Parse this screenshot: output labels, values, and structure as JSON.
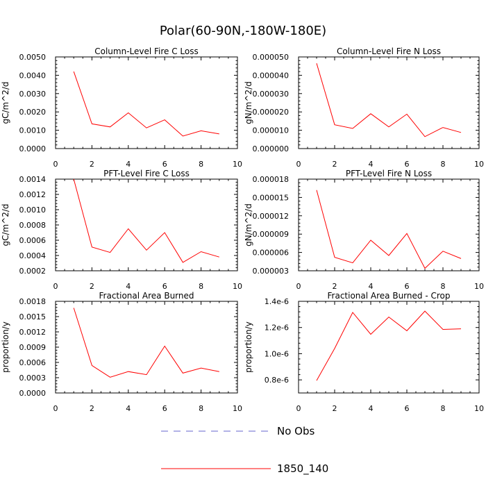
{
  "page": {
    "title": "Polar(60-90N,-180W-180E)",
    "accent_line_color": "#ff0000",
    "obs_line_color": "#6666cc"
  },
  "legend": {
    "entries": [
      {
        "label": "No Obs",
        "style": "dashed",
        "color": "#6666cc"
      },
      {
        "label": "1850_140",
        "style": "solid",
        "color": "#ff0000"
      }
    ]
  },
  "chart_data": [
    {
      "type": "line",
      "title": "Column-Level Fire C Loss",
      "ylabel": "gC/m^2/d",
      "xlabel": "",
      "xlim": [
        0,
        10
      ],
      "xticks": [
        0,
        2,
        4,
        6,
        8,
        10
      ],
      "xtick_labels": [
        "0",
        "2",
        "4",
        "6",
        "8",
        "10"
      ],
      "ylim": [
        0,
        0.005
      ],
      "yticks": [
        0,
        0.001,
        0.002,
        0.003,
        0.004,
        0.005
      ],
      "ytick_labels": [
        "0.0000",
        "0.0010",
        "0.0020",
        "0.0030",
        "0.0040",
        "0.0050"
      ],
      "series": [
        {
          "name": "1850_140",
          "x": [
            1,
            2,
            3,
            4,
            5,
            6,
            7,
            8,
            9
          ],
          "values": [
            0.0042,
            0.00135,
            0.00118,
            0.00195,
            0.00113,
            0.00157,
            0.00068,
            0.00097,
            0.0008
          ]
        }
      ]
    },
    {
      "type": "line",
      "title": "Column-Level Fire N Loss",
      "ylabel": "gN/m^2/d",
      "xlabel": "",
      "xlim": [
        0,
        10
      ],
      "xticks": [
        0,
        2,
        4,
        6,
        8,
        10
      ],
      "xtick_labels": [
        "0",
        "2",
        "4",
        "6",
        "8",
        "10"
      ],
      "ylim": [
        0,
        5e-05
      ],
      "yticks": [
        0,
        1e-05,
        2e-05,
        3e-05,
        4e-05,
        5e-05
      ],
      "ytick_labels": [
        "0.000000",
        "0.000010",
        "0.000020",
        "0.000030",
        "0.000040",
        "0.000050"
      ],
      "series": [
        {
          "name": "1850_140",
          "x": [
            1,
            2,
            3,
            4,
            5,
            6,
            7,
            8,
            9
          ],
          "values": [
            4.65e-05,
            1.3e-05,
            1.1e-05,
            1.9e-05,
            1.18e-05,
            1.88e-05,
            6.5e-06,
            1.15e-05,
            8.8e-06
          ]
        }
      ]
    },
    {
      "type": "line",
      "title": "PFT-Level Fire C Loss",
      "ylabel": "gC/m^2/d",
      "xlabel": "",
      "xlim": [
        0,
        10
      ],
      "xticks": [
        0,
        2,
        4,
        6,
        8,
        10
      ],
      "xtick_labels": [
        "0",
        "2",
        "4",
        "6",
        "8",
        "10"
      ],
      "ylim": [
        0.0002,
        0.0014
      ],
      "yticks": [
        0.0002,
        0.0004,
        0.0006,
        0.0008,
        0.001,
        0.0012,
        0.0014
      ],
      "ytick_labels": [
        "0.0002",
        "0.0004",
        "0.0006",
        "0.0008",
        "0.0010",
        "0.0012",
        "0.0014"
      ],
      "series": [
        {
          "name": "1850_140",
          "x": [
            1,
            2,
            3,
            4,
            5,
            6,
            7,
            8,
            9
          ],
          "values": [
            0.0014,
            0.00051,
            0.00044,
            0.00075,
            0.00047,
            0.0007,
            0.00031,
            0.00045,
            0.00038
          ]
        }
      ]
    },
    {
      "type": "line",
      "title": "PFT-Level Fire N Loss",
      "ylabel": "gN/m^2/d",
      "xlabel": "",
      "xlim": [
        0,
        10
      ],
      "xticks": [
        0,
        2,
        4,
        6,
        8,
        10
      ],
      "xtick_labels": [
        "0",
        "2",
        "4",
        "6",
        "8",
        "10"
      ],
      "ylim": [
        3e-06,
        1.8e-05
      ],
      "yticks": [
        3e-06,
        6e-06,
        9e-06,
        1.2e-05,
        1.5e-05,
        1.8e-05
      ],
      "ytick_labels": [
        "0.000003",
        "0.000006",
        "0.000009",
        "0.000012",
        "0.000015",
        "0.000018"
      ],
      "series": [
        {
          "name": "1850_140",
          "x": [
            1,
            2,
            3,
            4,
            5,
            6,
            7,
            8,
            9
          ],
          "values": [
            1.62e-05,
            5.2e-06,
            4.3e-06,
            8e-06,
            5.5e-06,
            9.1e-06,
            3.4e-06,
            6.2e-06,
            5e-06
          ]
        }
      ]
    },
    {
      "type": "line",
      "title": "Fractional Area Burned",
      "ylabel": "proportion/y",
      "xlabel": "",
      "xlim": [
        0,
        10
      ],
      "xticks": [
        0,
        2,
        4,
        6,
        8,
        10
      ],
      "xtick_labels": [
        "0",
        "2",
        "4",
        "6",
        "8",
        "10"
      ],
      "ylim": [
        0,
        0.0018
      ],
      "yticks": [
        0,
        0.0003,
        0.0006,
        0.0009,
        0.0012,
        0.0015,
        0.0018
      ],
      "ytick_labels": [
        "0.0000",
        "0.0003",
        "0.0006",
        "0.0009",
        "0.0012",
        "0.0015",
        "0.0018"
      ],
      "series": [
        {
          "name": "1850_140",
          "x": [
            1,
            2,
            3,
            4,
            5,
            6,
            7,
            8,
            9
          ],
          "values": [
            0.00167,
            0.00054,
            0.00031,
            0.00042,
            0.00036,
            0.00092,
            0.00039,
            0.00049,
            0.00042
          ]
        }
      ]
    },
    {
      "type": "line",
      "title": "Fractional Area Burned - Crop",
      "ylabel": "proportion/y",
      "xlabel": "",
      "xlim": [
        0,
        10
      ],
      "xticks": [
        0,
        2,
        4,
        6,
        8,
        10
      ],
      "xtick_labels": [
        "0",
        "2",
        "4",
        "6",
        "8",
        "10"
      ],
      "ylim": [
        7e-07,
        1.4e-06
      ],
      "yticks": [
        8e-07,
        1e-06,
        1.2e-06,
        1.4e-06
      ],
      "ytick_labels": [
        "0.8e-6",
        "1.0e-6",
        "1.2e-6",
        "1.4e-6"
      ],
      "series": [
        {
          "name": "1850_140",
          "x": [
            1,
            2,
            3,
            4,
            5,
            6,
            7,
            8,
            9
          ],
          "values": [
            7.95e-07,
            1.04e-06,
            1.315e-06,
            1.148e-06,
            1.28e-06,
            1.175e-06,
            1.325e-06,
            1.185e-06,
            1.19e-06
          ]
        }
      ]
    }
  ]
}
